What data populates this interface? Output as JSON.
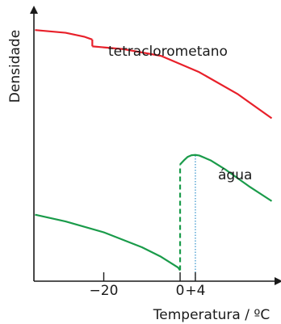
{
  "chart_data": {
    "type": "line",
    "title": "",
    "xlabel": "Temperatura / ºC",
    "ylabel": "Densidade",
    "x_ticks": [
      {
        "value": -20,
        "label": "−20"
      },
      {
        "value": 0,
        "label": "0"
      },
      {
        "value": 4,
        "label": "+4"
      }
    ],
    "xlim": [
      -38.3,
      25.8
    ],
    "ylim": [
      0,
      1
    ],
    "y_ticks": [],
    "grid": false,
    "series": [
      {
        "name": "tetraclorometano",
        "color": "#e8202a",
        "segments": [
          {
            "style": "solid",
            "points": [
              [
                -38,
                0.925
              ],
              [
                -30,
                0.915
              ],
              [
                -25,
                0.9
              ],
              [
                -23,
                0.89
              ]
            ]
          },
          {
            "style": "solid",
            "points": [
              [
                -23,
                0.89
              ],
              [
                -23,
                0.865
              ]
            ]
          },
          {
            "style": "solid",
            "points": [
              [
                -23,
                0.865
              ],
              [
                -15,
                0.855
              ],
              [
                -5,
                0.83
              ],
              [
                5,
                0.77
              ],
              [
                15,
                0.69
              ],
              [
                24,
                0.6
              ]
            ]
          }
        ]
      },
      {
        "name": "água",
        "color": "#1a9b4a",
        "segments": [
          {
            "style": "solid",
            "points": [
              [
                -38,
                0.245
              ],
              [
                -30,
                0.22
              ],
              [
                -20,
                0.18
              ],
              [
                -10,
                0.125
              ],
              [
                -5,
                0.09
              ],
              [
                -0.5,
                0.05
              ],
              [
                0,
                0.04
              ]
            ]
          },
          {
            "style": "dashed",
            "points": [
              [
                0,
                0.04
              ],
              [
                0,
                0.43
              ]
            ]
          },
          {
            "style": "solid",
            "points": [
              [
                0,
                0.43
              ],
              [
                1,
                0.445
              ],
              [
                2,
                0.458
              ],
              [
                3,
                0.464
              ],
              [
                4,
                0.465
              ],
              [
                5,
                0.463
              ],
              [
                8,
                0.445
              ],
              [
                12,
                0.41
              ],
              [
                18,
                0.35
              ],
              [
                24,
                0.295
              ]
            ]
          }
        ]
      }
    ],
    "annotations": [
      {
        "type": "vline",
        "x": 4,
        "y_from": 0,
        "y_to": 0.465,
        "style": "dotted",
        "color": "#2e8fc9"
      }
    ]
  }
}
